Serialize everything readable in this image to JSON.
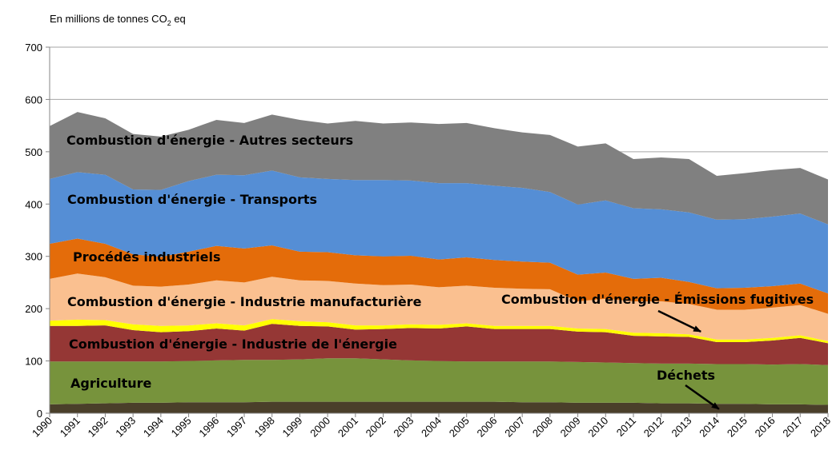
{
  "chart_data": {
    "type": "area",
    "stacked": true,
    "ylabel_parts": {
      "text": "En millions de tonnes CO",
      "sub": "2",
      "suffix": " eq"
    },
    "ylim": [
      0,
      700
    ],
    "yticks": [
      0,
      100,
      200,
      300,
      400,
      500,
      600,
      700
    ],
    "grid": true,
    "x": [
      "1990",
      "1991",
      "1992",
      "1993",
      "1994",
      "1995",
      "1996",
      "1997",
      "1998",
      "1999",
      "2000",
      "2001",
      "2002",
      "2003",
      "2004",
      "2005",
      "2006",
      "2007",
      "2008",
      "2009",
      "2010",
      "2011",
      "2012",
      "2013",
      "2014",
      "2015",
      "2016",
      "2017",
      "2018"
    ],
    "series": [
      {
        "name": "Déchets",
        "color": "#4a3f2a",
        "values": [
          17,
          18,
          19,
          20,
          20,
          21,
          21,
          21,
          22,
          22,
          22,
          22,
          22,
          22,
          22,
          22,
          22,
          21,
          21,
          20,
          20,
          20,
          19,
          19,
          18,
          18,
          17,
          17,
          16
        ]
      },
      {
        "name": "Agriculture",
        "color": "#77933c",
        "values": [
          82,
          81,
          80,
          79,
          79,
          79,
          80,
          81,
          80,
          81,
          83,
          83,
          81,
          79,
          78,
          77,
          77,
          78,
          78,
          78,
          77,
          76,
          76,
          76,
          76,
          76,
          76,
          77,
          76
        ]
      },
      {
        "name": "Combustion d'énergie  - Industrie de l'énergie",
        "color": "#953735",
        "values": [
          68,
          68,
          69,
          60,
          56,
          57,
          61,
          56,
          69,
          64,
          61,
          55,
          58,
          62,
          62,
          67,
          62,
          62,
          62,
          58,
          58,
          52,
          52,
          51,
          42,
          42,
          46,
          50,
          42
        ]
      },
      {
        "name": "Combustion d'énergie  - Émissions fugitives",
        "color": "#ffff00",
        "values": [
          10,
          12,
          10,
          11,
          12,
          11,
          10,
          10,
          9,
          9,
          8,
          8,
          7,
          7,
          7,
          6,
          6,
          6,
          6,
          6,
          6,
          6,
          6,
          5,
          5,
          5,
          5,
          5,
          4
        ]
      },
      {
        "name": "Combustion d'énergie  - Industrie manufacturière",
        "color": "#fac090",
        "values": [
          80,
          88,
          82,
          74,
          75,
          78,
          82,
          82,
          81,
          78,
          79,
          80,
          77,
          76,
          72,
          72,
          73,
          71,
          70,
          52,
          58,
          60,
          61,
          58,
          57,
          57,
          58,
          58,
          52
        ]
      },
      {
        "name": "Procédés industriels",
        "color": "#e46c0a",
        "values": [
          67,
          67,
          64,
          60,
          57,
          63,
          66,
          65,
          60,
          55,
          55,
          54,
          55,
          55,
          53,
          54,
          53,
          52,
          51,
          51,
          50,
          43,
          45,
          42,
          41,
          42,
          41,
          41,
          39
        ]
      },
      {
        "name": "Combustion d'énergie  - Transports",
        "color": "#558ed5",
        "values": [
          124,
          127,
          132,
          124,
          128,
          135,
          136,
          140,
          143,
          142,
          140,
          144,
          146,
          144,
          146,
          142,
          142,
          141,
          135,
          134,
          138,
          135,
          131,
          133,
          131,
          131,
          133,
          134,
          132
        ]
      },
      {
        "name": "Combustion d'énergie - Autres secteurs",
        "color": "#808080",
        "values": [
          101,
          115,
          108,
          106,
          102,
          98,
          105,
          100,
          107,
          110,
          106,
          113,
          108,
          111,
          113,
          115,
          110,
          106,
          109,
          111,
          109,
          94,
          99,
          102,
          84,
          88,
          89,
          87,
          86
        ]
      }
    ],
    "annotations": [
      {
        "series_index": 7,
        "text": "Combustion d'énergie - Autres secteurs"
      },
      {
        "series_index": 6,
        "text": "Combustion d'énergie  - Transports"
      },
      {
        "series_index": 5,
        "text": "Procédés industriels"
      },
      {
        "series_index": 4,
        "text": "Combustion d'énergie  - Industrie manufacturière"
      },
      {
        "series_index": 3,
        "text": "Combustion d'énergie  - Émissions fugitives",
        "arrow_to": {
          "x": "2014",
          "y": 156
        }
      },
      {
        "series_index": 2,
        "text": "Combustion d'énergie  - Industrie de l'énergie"
      },
      {
        "series_index": 1,
        "text": "Agriculture"
      },
      {
        "series_index": 0,
        "text": "Déchets",
        "arrow_to": {
          "x": "2015",
          "y": 8
        }
      }
    ]
  }
}
